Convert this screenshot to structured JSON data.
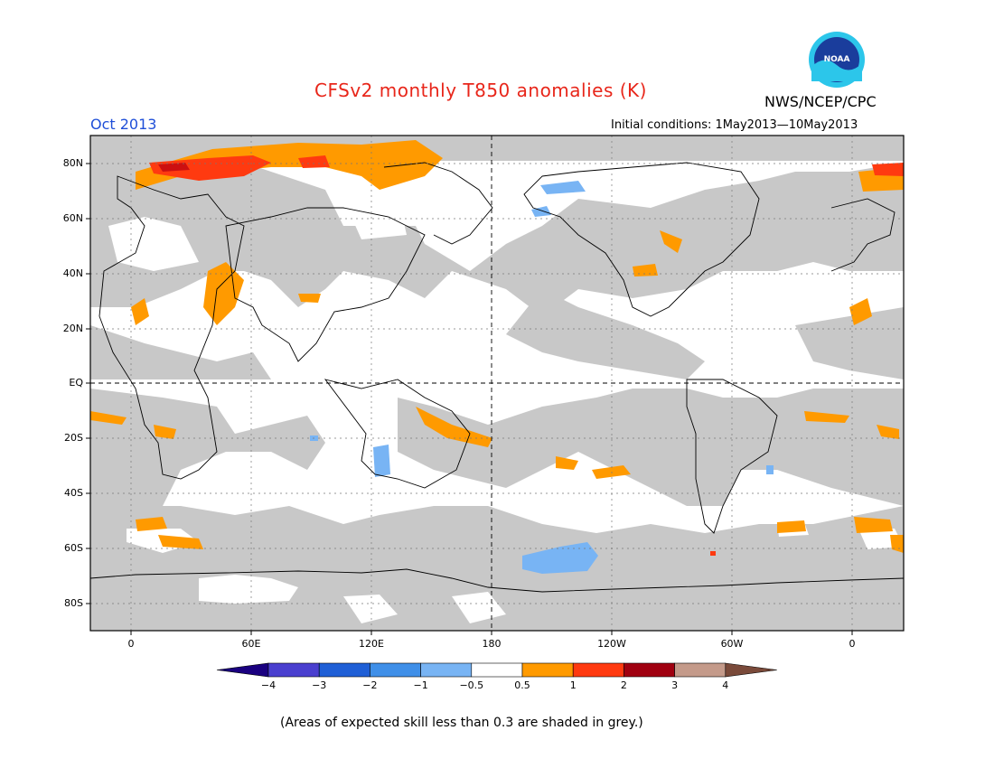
{
  "title": "CFSv2 monthly T850 anomalies (K)",
  "organization": "NWS/NCEP/CPC",
  "logo_text": "NOAA",
  "month_label": "Oct 2013",
  "initial_conditions": "Initial conditions: 1May2013—10May2013",
  "footnote": "(Areas of expected skill less than 0.3 are shaded in grey.)",
  "lat_labels": [
    "80N",
    "60N",
    "40N",
    "20N",
    "EQ",
    "20S",
    "40S",
    "60S",
    "80S"
  ],
  "lon_labels": [
    "0",
    "60E",
    "120E",
    "180",
    "120W",
    "60W",
    "0"
  ],
  "colorbar": {
    "labels": [
      "−4",
      "−3",
      "−2",
      "−1",
      "−0.5",
      "0.5",
      "1",
      "2",
      "3",
      "4"
    ],
    "colors": [
      "#1a0080",
      "#4a3fcf",
      "#1f5fd6",
      "#3f8fe8",
      "#78b4f4",
      "#ffffff",
      "#ff9a00",
      "#ff3a10",
      "#a00010",
      "#c49a8a",
      "#7a4a3a"
    ]
  },
  "colors": {
    "skill_grey": "#c8c8c8",
    "orange": "#ff9a00",
    "red": "#ff3a10",
    "dark_red": "#cc1010",
    "light_blue": "#78b4f4"
  }
}
